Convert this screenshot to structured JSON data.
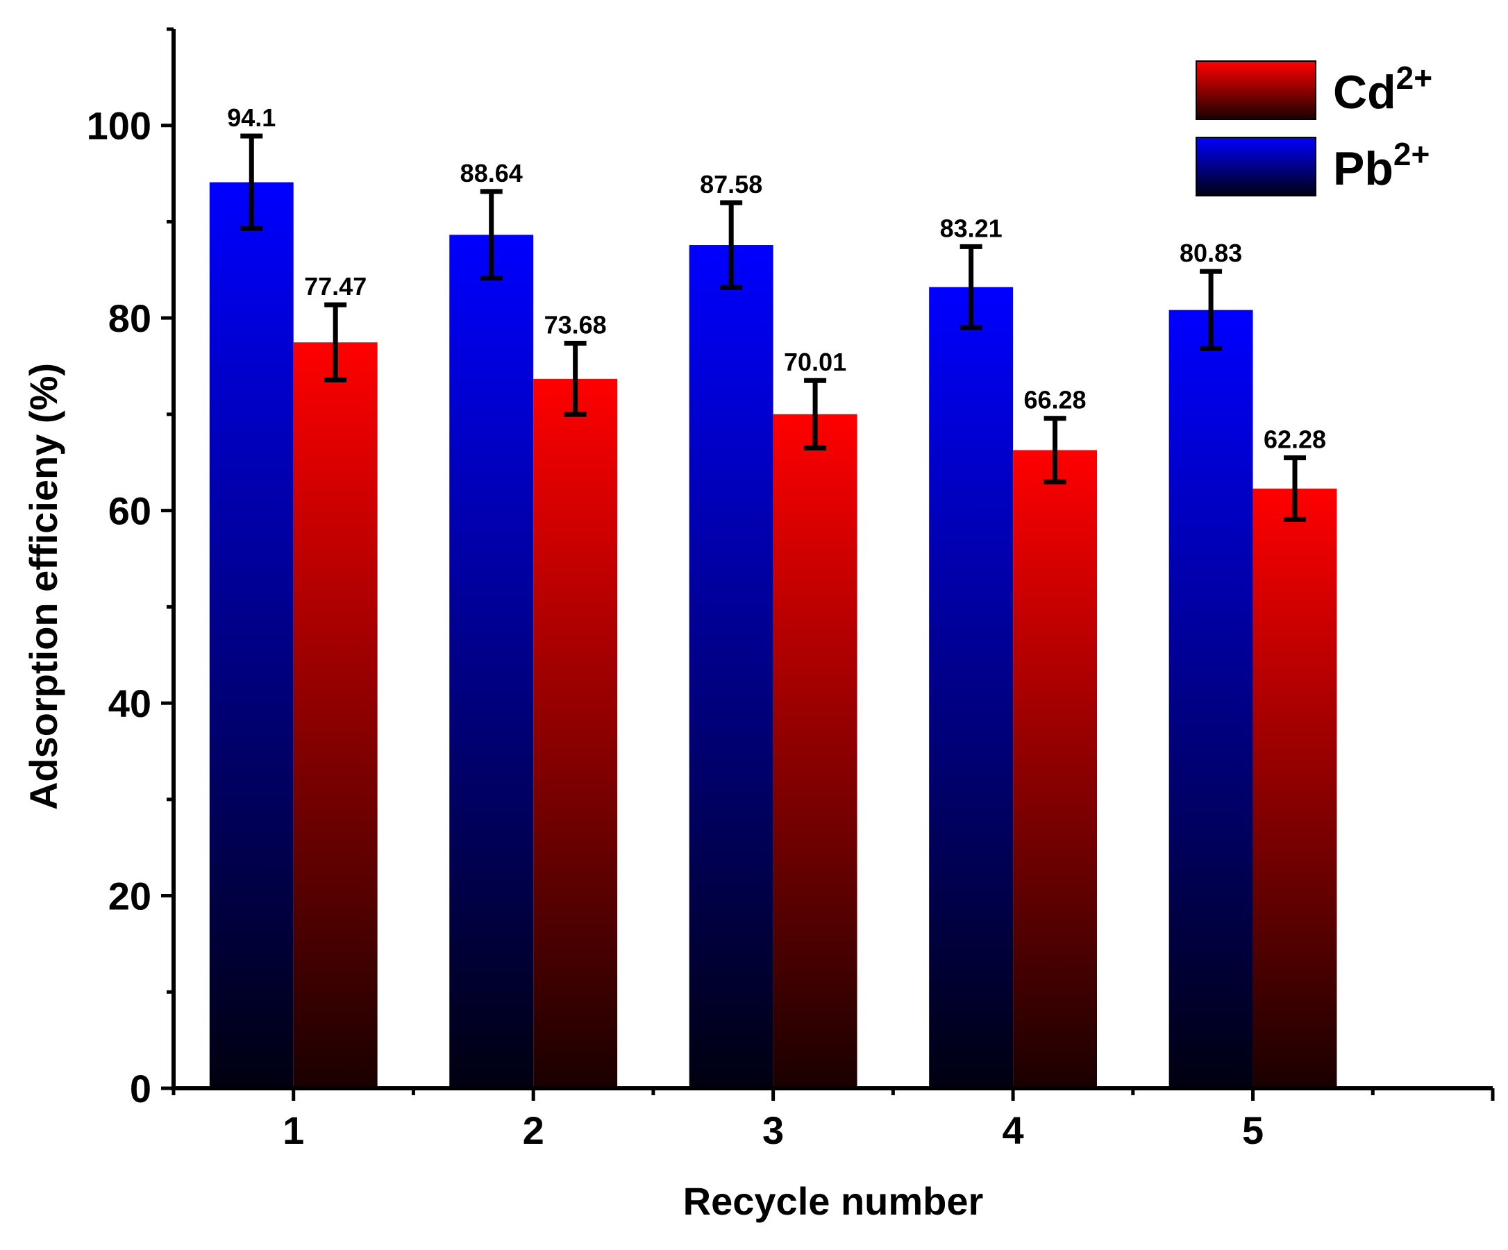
{
  "chart_data": {
    "type": "bar",
    "title": "",
    "xlabel": "Recycle number",
    "ylabel": "Adsorption efficieny (%)",
    "categories": [
      "1",
      "2",
      "3",
      "4",
      "5"
    ],
    "ylim": [
      0,
      110
    ],
    "yticks": [
      0,
      20,
      40,
      60,
      80,
      100
    ],
    "grid": false,
    "legend_position": "top-right",
    "series": [
      {
        "name": "Pb",
        "superscript": "2+",
        "color_top": "#0000ff",
        "color_bottom": "#000010",
        "values": [
          94.1,
          88.64,
          87.58,
          83.21,
          80.83
        ],
        "labels": [
          "94.1",
          "88.64",
          "87.58",
          "83.21",
          "80.83"
        ],
        "error": [
          4.8,
          4.5,
          4.4,
          4.2,
          4.0
        ]
      },
      {
        "name": "Cd",
        "superscript": "2+",
        "color_top": "#ff0000",
        "color_bottom": "#1a0000",
        "values": [
          77.47,
          73.68,
          70.01,
          66.28,
          62.28
        ],
        "labels": [
          "77.47",
          "73.68",
          "70.01",
          "66.28",
          "62.28"
        ],
        "error": [
          3.9,
          3.7,
          3.5,
          3.3,
          3.2
        ]
      }
    ],
    "legend_order": [
      1,
      0
    ]
  }
}
